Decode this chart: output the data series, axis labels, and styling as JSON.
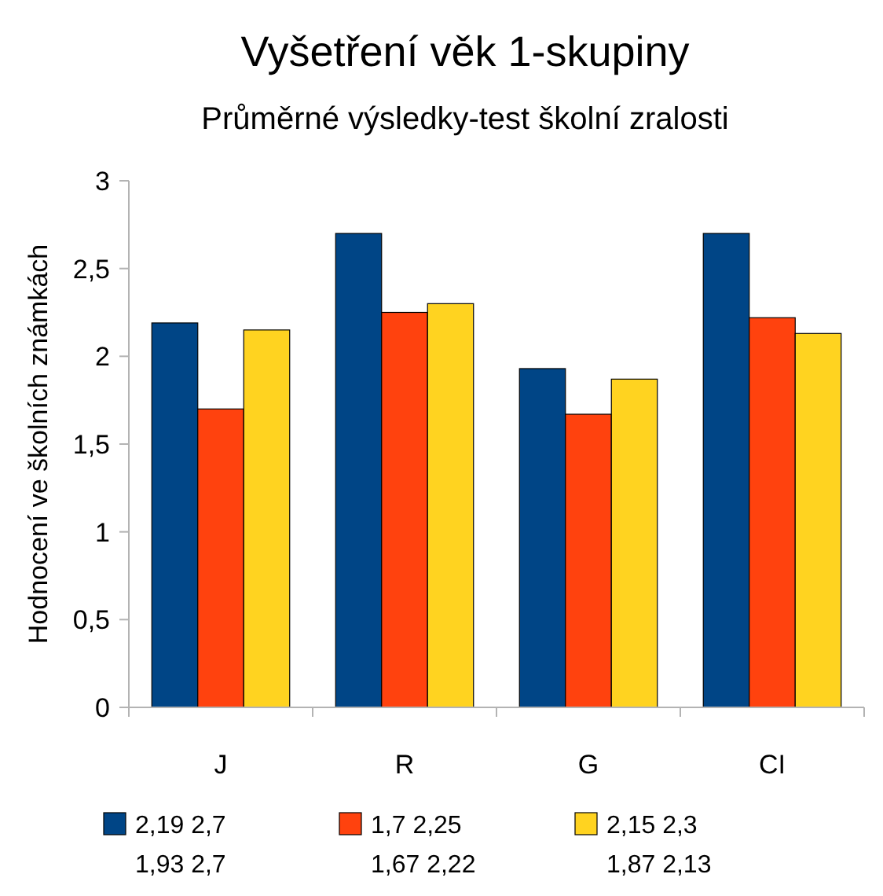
{
  "chart_data": {
    "type": "bar",
    "title": "Vyšetření věk 1-skupiny",
    "subtitle": "Průměrné výsledky-test školní zralosti",
    "ylabel": "Hodnocení ve školních známkách",
    "categories": [
      "J",
      "R",
      "G",
      "CI"
    ],
    "series": [
      {
        "name": "2,19 2,7 1,93 2,7",
        "color": "#004586",
        "values": [
          2.19,
          2.7,
          1.93,
          2.7
        ]
      },
      {
        "name": "1,7 2,25 1,67 2,22",
        "color": "#ff420e",
        "values": [
          1.7,
          2.25,
          1.67,
          2.22
        ]
      },
      {
        "name": "2,15 2,3 1,87 2,13",
        "color": "#ffd320",
        "values": [
          2.15,
          2.3,
          1.87,
          2.13
        ]
      }
    ],
    "ylim": [
      0,
      3
    ],
    "yticks": [
      0,
      {
        "value": 0.5,
        "label": "0,5"
      },
      1,
      {
        "value": 1.5,
        "label": "1,5"
      },
      2,
      {
        "value": 2.5,
        "label": "2,5"
      },
      3
    ],
    "grid": false,
    "legend": "bottom"
  }
}
